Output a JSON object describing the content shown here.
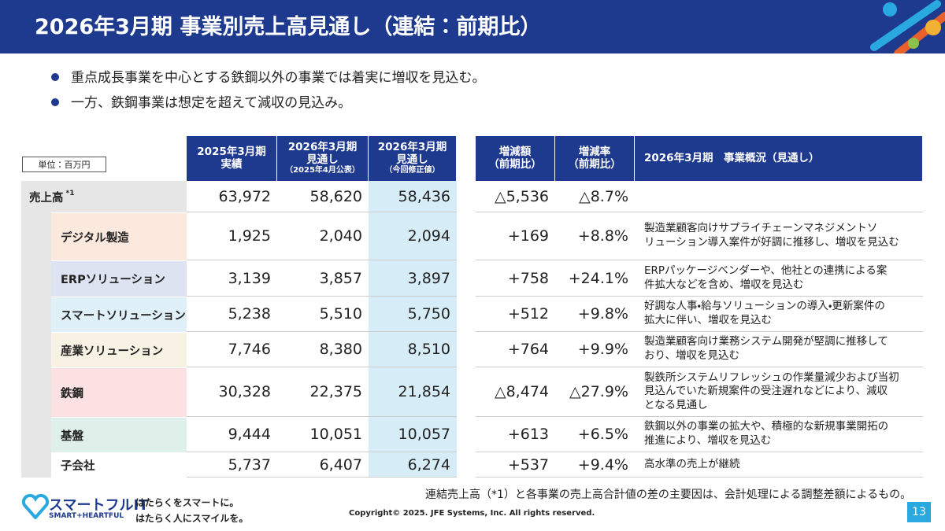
{
  "header": {
    "title": "2026年3月期 事業別売上高見通し（連結：前期比）"
  },
  "bullets": [
    "重点成長事業を中心とする鉄鋼以外の事業では着実に増収を見込む。",
    "一方、鉄鋼事業は想定を超えて減収の見込み。"
  ],
  "table": {
    "unit": "単位：百万円",
    "left_headers": [
      [
        "2025年3月期",
        "実績"
      ],
      [
        "2026年3月期",
        "見通し",
        "（2025年4月公表）"
      ],
      [
        "2026年3月期",
        "見通し",
        "（今回修正値）"
      ]
    ],
    "right_headers": [
      [
        "増減額",
        "（前期比）"
      ],
      [
        "増減率",
        "（前期比）"
      ],
      [
        "2026年3月期　事業概況（見通し）"
      ]
    ],
    "rows": [
      {
        "label": "売上高",
        "sup": "*1",
        "cells": [
          "63,972",
          "58,620",
          "58,436",
          "△5,536",
          "△8.7%"
        ]
      },
      {
        "label": "デジタル製造",
        "cells": [
          "1,925",
          "2,040",
          "2,094",
          "+169",
          "+8.8%"
        ],
        "note": [
          "製造業顧客向けサプライチェーンマネジメントソ",
          "リューション導入案件が好調に推移し、増収を見込む"
        ]
      },
      {
        "label": "ERPソリューション",
        "cells": [
          "3,139",
          "3,857",
          "3,897",
          "+758",
          "+24.1%"
        ],
        "note": [
          "ERPパッケージベンダーや、他社との連携による案",
          "件拡大などを含め、増収を見込む"
        ]
      },
      {
        "label": "スマートソリューション",
        "cells": [
          "5,238",
          "5,510",
          "5,750",
          "+512",
          "+9.8%"
        ],
        "note": [
          "好調な人事・給与ソリューションの導入・更新案件の",
          "拡大に伴い、増収を見込む"
        ]
      },
      {
        "label": "産業ソリューション",
        "cells": [
          "7,746",
          "8,380",
          "8,510",
          "+764",
          "+9.9%"
        ],
        "note": [
          "製造業顧客向け業務システム開発が堅調に推移して",
          "おり、増収を見込む"
        ]
      },
      {
        "label": "鉄鋼",
        "cells": [
          "30,328",
          "22,375",
          "21,854",
          "△8,474",
          "△27.9%"
        ],
        "note": [
          "製鉄所システムリフレッシュの作業量減少および当初",
          "見込んでいた新規案件の受注遅れなどにより、減収",
          "となる見通し"
        ]
      },
      {
        "label": "基盤",
        "cells": [
          "9,444",
          "10,051",
          "10,057",
          "+613",
          "+6.5%"
        ],
        "note": [
          "鉄鋼以外の事業の拡大や、積極的な新規事業開拓の",
          "推進により、増収を見込む"
        ]
      },
      {
        "label": "子会社",
        "cells": [
          "5,737",
          "6,407",
          "6,274",
          "+537",
          "+9.4%"
        ],
        "note": [
          "高水準の売上が継続"
        ]
      }
    ],
    "footnote": "連結売上高（*1）と各事業の売上高合計値の差の主要因は、会計処理による調整差額によるもの。"
  },
  "footer": {
    "logo": "スマートフルIT",
    "logo_sub": "SMART+HEARTFUL",
    "tagline": [
      "はたらくをスマートに。",
      "はたらく人にスマイルを。"
    ],
    "copyright": "Copyright© 2025. JFE Systems, Inc. All rights reserved.",
    "page": "13"
  }
}
